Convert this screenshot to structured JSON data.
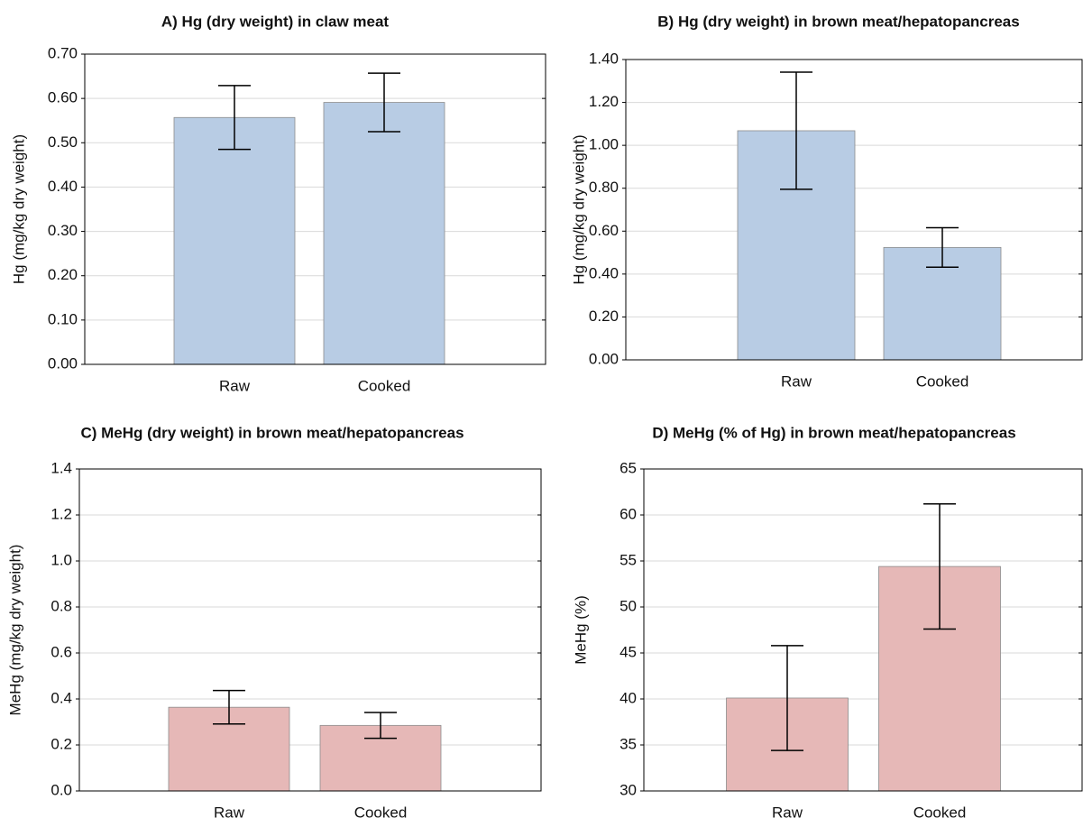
{
  "chart_data": [
    {
      "type": "bar",
      "title": "A) Hg (dry weight) in claw meat",
      "y_label": "Hg (mg/kg dry weight)",
      "categories": [
        "Raw",
        "Cooked"
      ],
      "values": [
        0.557,
        0.591
      ],
      "errors": [
        0.072,
        0.066
      ],
      "color": "#b8cce4",
      "ylim": [
        0,
        0.7
      ],
      "yticks": [
        {
          "value": 0,
          "label": "0.00"
        },
        {
          "value": 0.1,
          "label": "0.10"
        },
        {
          "value": 0.2,
          "label": "0.20"
        },
        {
          "value": 0.3,
          "label": "0.30"
        },
        {
          "value": 0.4,
          "label": "0.40"
        },
        {
          "value": 0.5,
          "label": "0.50"
        },
        {
          "value": 0.6,
          "label": "0.60"
        },
        {
          "value": 0.7,
          "label": "0.70"
        }
      ],
      "grid": true
    },
    {
      "type": "bar",
      "title": "B) Hg (dry weight) in brown meat/hepatopancreas",
      "y_label": "Hg (mg/kg dry weight)",
      "categories": [
        "Raw",
        "Cooked"
      ],
      "values": [
        1.068,
        0.524
      ],
      "errors": [
        0.273,
        0.092
      ],
      "color": "#b8cce4",
      "ylim": [
        0,
        1.4
      ],
      "yticks": [
        {
          "value": 0,
          "label": "0.00"
        },
        {
          "value": 0.2,
          "label": "0.20"
        },
        {
          "value": 0.4,
          "label": "0.40"
        },
        {
          "value": 0.6,
          "label": "0.60"
        },
        {
          "value": 0.8,
          "label": "0.80"
        },
        {
          "value": 1,
          "label": "1.00"
        },
        {
          "value": 1.2,
          "label": "1.20"
        },
        {
          "value": 1.4,
          "label": "1.40"
        }
      ],
      "grid": true
    },
    {
      "type": "bar",
      "title": "C) MeHg (dry weight) in brown meat/hepatopancreas",
      "y_label": "MeHg (mg/kg dry weight)",
      "categories": [
        "Raw",
        "Cooked"
      ],
      "values": [
        0.364,
        0.285
      ],
      "errors": [
        0.073,
        0.056
      ],
      "color": "#e6b8b7",
      "ylim": [
        0,
        1.4
      ],
      "yticks": [
        {
          "value": 0,
          "label": "0.0"
        },
        0.2,
        0.4,
        0.6,
        0.8,
        {
          "value": 1,
          "label": "1.0"
        },
        1.2,
        1.4
      ],
      "grid": true
    },
    {
      "type": "bar",
      "title": "D) MeHg (% of Hg) in brown meat/hepatopancreas",
      "y_label": "MeHg (%)",
      "categories": [
        "Raw",
        "Cooked"
      ],
      "values": [
        40.1,
        54.4
      ],
      "errors": [
        5.7,
        6.8
      ],
      "color": "#e6b8b7",
      "ylim": [
        30,
        65
      ],
      "yticks": [
        30,
        35,
        40,
        45,
        50,
        55,
        60,
        65
      ],
      "grid": true
    }
  ]
}
